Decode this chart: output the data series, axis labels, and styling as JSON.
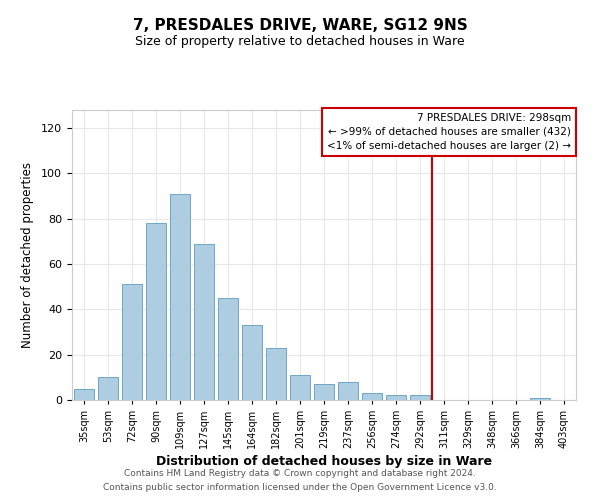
{
  "title": "7, PRESDALES DRIVE, WARE, SG12 9NS",
  "subtitle": "Size of property relative to detached houses in Ware",
  "xlabel": "Distribution of detached houses by size in Ware",
  "ylabel": "Number of detached properties",
  "bar_color": "#aecde0",
  "bar_edge_color": "#5a9fc0",
  "bin_labels": [
    "35sqm",
    "53sqm",
    "72sqm",
    "90sqm",
    "109sqm",
    "127sqm",
    "145sqm",
    "164sqm",
    "182sqm",
    "201sqm",
    "219sqm",
    "237sqm",
    "256sqm",
    "274sqm",
    "292sqm",
    "311sqm",
    "329sqm",
    "348sqm",
    "366sqm",
    "384sqm",
    "403sqm"
  ],
  "bar_heights": [
    5,
    10,
    51,
    78,
    91,
    69,
    45,
    33,
    23,
    11,
    7,
    8,
    3,
    2,
    2,
    0,
    0,
    0,
    0,
    1,
    0
  ],
  "ylim": [
    0,
    128
  ],
  "yticks": [
    0,
    20,
    40,
    60,
    80,
    100,
    120
  ],
  "vline_x": 14.5,
  "vline_color": "#cc0000",
  "legend_title": "7 PRESDALES DRIVE: 298sqm",
  "legend_line1": "← >99% of detached houses are smaller (432)",
  "legend_line2": "<1% of semi-detached houses are larger (2) →",
  "legend_box_color": "#cc0000",
  "footer_line1": "Contains HM Land Registry data © Crown copyright and database right 2024.",
  "footer_line2": "Contains public sector information licensed under the Open Government Licence v3.0.",
  "background_color": "#ffffff",
  "grid_color": "#e8e8e8"
}
